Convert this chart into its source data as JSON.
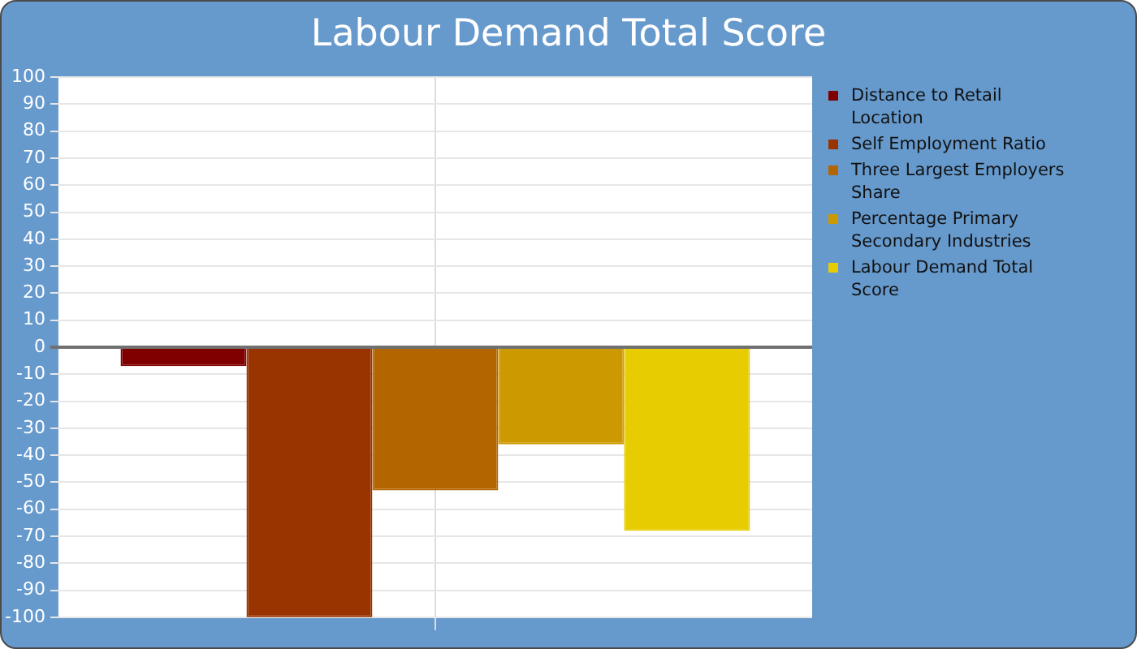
{
  "chart_data": {
    "type": "bar",
    "title": "Labour Demand Total Score",
    "categories": [
      null
    ],
    "series": [
      {
        "name": "Distance to Retail Location",
        "color": "#800000",
        "values": [
          -7
        ]
      },
      {
        "name": "Self Employment Ratio",
        "color": "#993300",
        "values": [
          -100
        ]
      },
      {
        "name": "Three Largest Employers Share",
        "color": "#b36600",
        "values": [
          -53
        ]
      },
      {
        "name": "Percentage Primary Secondary Industries",
        "color": "#cc9900",
        "values": [
          -36
        ]
      },
      {
        "name": "Labour Demand Total Score",
        "color": "#e6cc00",
        "values": [
          -68
        ]
      }
    ],
    "ylim": [
      -100,
      100
    ],
    "yticks": [
      -100,
      -90,
      -80,
      -70,
      -60,
      -50,
      -40,
      -30,
      -20,
      -10,
      0,
      10,
      20,
      30,
      40,
      50,
      60,
      70,
      80,
      90,
      100
    ],
    "grid": true,
    "legend": "right"
  }
}
